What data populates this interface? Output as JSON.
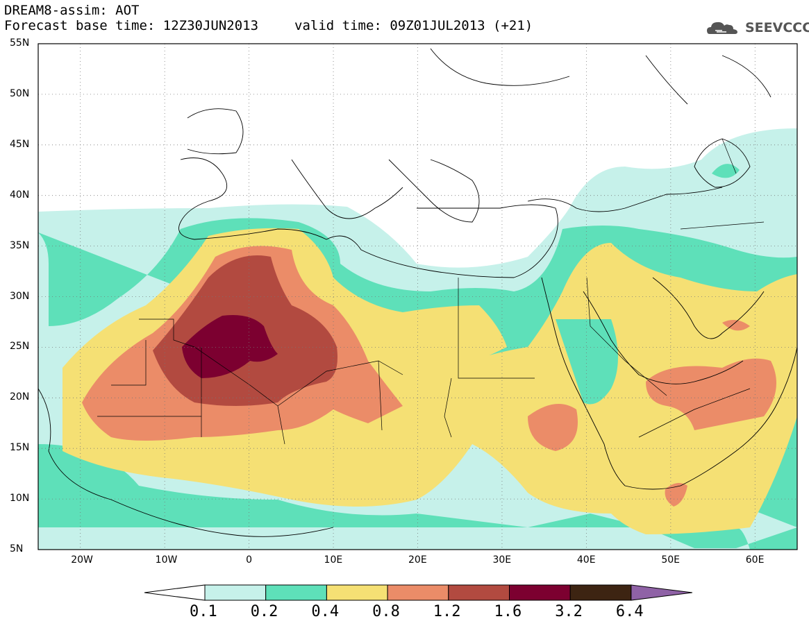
{
  "header": {
    "title": "DREAM8-assim: AOT",
    "base_time": "Forecast base time: 12Z30JUN2013",
    "valid_time": "valid time: 09Z01JUL2013 (+21)"
  },
  "logo": {
    "text": "SEEVCCC",
    "icon": "cloud-logo-icon"
  },
  "map": {
    "lat_labels": [
      "55N",
      "50N",
      "45N",
      "40N",
      "35N",
      "30N",
      "25N",
      "20N",
      "15N",
      "10N",
      "5N"
    ],
    "lon_labels": [
      "20W",
      "10W",
      "0",
      "10E",
      "20E",
      "30E",
      "40E",
      "50E",
      "60E"
    ],
    "lat_range": [
      5,
      55
    ],
    "lon_range": [
      -25,
      65
    ],
    "grid": "dotted"
  },
  "colorbar": {
    "levels": [
      "0.1",
      "0.2",
      "0.4",
      "0.8",
      "1.2",
      "1.6",
      "3.2",
      "6.4"
    ],
    "colors": [
      "#ffffff",
      "#c6f1ea",
      "#5ee0b9",
      "#f5e074",
      "#eb8c68",
      "#b24a40",
      "#7c0030",
      "#3d2412",
      "#8f62a6"
    ]
  }
}
